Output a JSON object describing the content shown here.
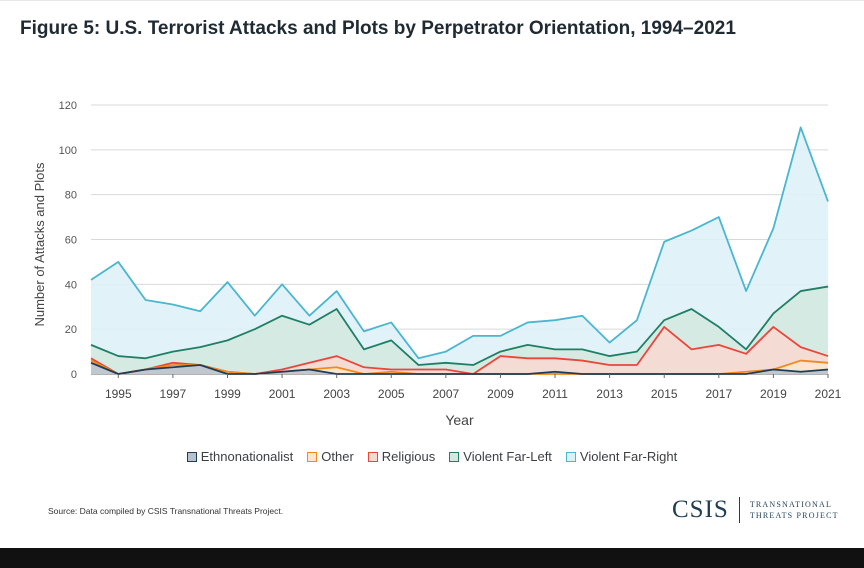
{
  "title": "Figure 5: U.S. Terrorist Attacks and Plots by Perpetrator Orientation, 1994–2021",
  "source": "Source: Data compiled by CSIS Transnational Threats Project.",
  "logo": {
    "main": "CSIS",
    "sub_line1": "TRANSNATIONAL",
    "sub_line2": "THREATS PROJECT"
  },
  "chart_data": {
    "type": "area",
    "xlabel": "Year",
    "ylabel": "Number of Attacks and Plots",
    "ylim": [
      0,
      120
    ],
    "yticks": [
      "0",
      "20",
      "40",
      "60",
      "80",
      "100",
      "120"
    ],
    "xticks": [
      "1995",
      "1997",
      "1999",
      "2001",
      "2003",
      "2005",
      "2007",
      "2009",
      "2011",
      "2013",
      "2015",
      "2017",
      "2019",
      "2021"
    ],
    "x": [
      1994,
      1995,
      1996,
      1997,
      1998,
      1999,
      2000,
      2001,
      2002,
      2003,
      2004,
      2005,
      2006,
      2007,
      2008,
      2009,
      2010,
      2011,
      2012,
      2013,
      2014,
      2015,
      2016,
      2017,
      2018,
      2019,
      2020,
      2021
    ],
    "grid": true,
    "legend_position": "bottom",
    "series": [
      {
        "name": "Violent Far-Right",
        "fill": "#ddf0f8",
        "line": "#4ab6cf",
        "values": [
          42,
          50,
          33,
          31,
          28,
          41,
          26,
          40,
          26,
          37,
          19,
          23,
          7,
          10,
          17,
          17,
          23,
          24,
          26,
          14,
          24,
          59,
          64,
          70,
          37,
          65,
          110,
          77
        ]
      },
      {
        "name": "Violent Far-Left",
        "fill": "#d3e9e0",
        "line": "#1f7f64",
        "values": [
          13,
          8,
          7,
          10,
          12,
          15,
          20,
          26,
          22,
          29,
          11,
          15,
          4,
          5,
          4,
          10,
          13,
          11,
          11,
          8,
          10,
          24,
          29,
          21,
          11,
          27,
          37,
          39
        ]
      },
      {
        "name": "Religious",
        "fill": "#f9d8d1",
        "line": "#e8473a",
        "values": [
          7,
          0,
          2,
          5,
          4,
          1,
          0,
          2,
          5,
          8,
          3,
          2,
          2,
          2,
          0,
          8,
          7,
          7,
          6,
          4,
          4,
          21,
          11,
          13,
          9,
          21,
          12,
          8
        ]
      },
      {
        "name": "Other",
        "fill": "#fde6cc",
        "line": "#f08a1c",
        "values": [
          6,
          0,
          2,
          4,
          4,
          1,
          0,
          1,
          2,
          3,
          0,
          1,
          0,
          0,
          0,
          0,
          0,
          0,
          0,
          0,
          0,
          0,
          0,
          0,
          1,
          2,
          6,
          5
        ]
      },
      {
        "name": "Ethnonationalist",
        "fill": "#b6c2cf",
        "line": "#1f3d55",
        "values": [
          5,
          0,
          2,
          3,
          4,
          0,
          0,
          1,
          2,
          0,
          0,
          0,
          0,
          0,
          0,
          0,
          0,
          1,
          0,
          0,
          0,
          0,
          0,
          0,
          0,
          2,
          1,
          2
        ]
      }
    ],
    "legend": [
      {
        "name": "Ethnonationalist",
        "fill": "#b6c2cf",
        "line": "#1f3d55"
      },
      {
        "name": "Other",
        "fill": "#fde6cc",
        "line": "#f08a1c"
      },
      {
        "name": "Religious",
        "fill": "#f9d8d1",
        "line": "#e8473a"
      },
      {
        "name": "Violent Far-Left",
        "fill": "#d3e9e0",
        "line": "#1f7f64"
      },
      {
        "name": "Violent Far-Right",
        "fill": "#ddf0f8",
        "line": "#4ab6cf"
      }
    ]
  }
}
